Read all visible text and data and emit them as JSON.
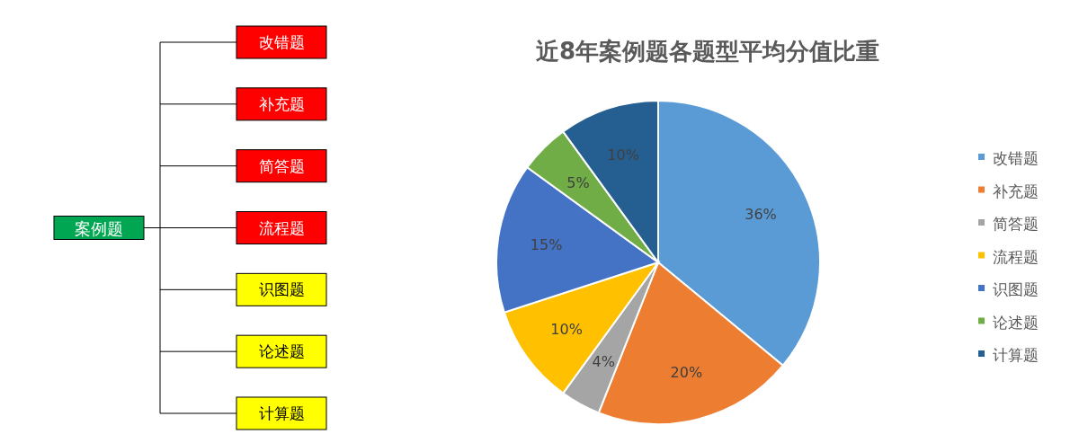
{
  "chart_data": [
    {
      "type": "other",
      "annotations": [
        "案例题",
        "改错题",
        "补充题",
        "简答题",
        "流程题",
        "识图题",
        "论述题",
        "计算题"
      ],
      "colors": [
        "#00a651",
        "#ff0000",
        "#ff0000",
        "#ff0000",
        "#ff0000",
        "#ffff00",
        "#ffff00",
        "#ffff00"
      ]
    },
    {
      "type": "pie",
      "title": "近8年案例题各题型平均分值比重",
      "categories": [
        "改错题",
        "补充题",
        "简答题",
        "流程题",
        "识图题",
        "论述题",
        "计算题"
      ],
      "values": [
        36,
        20,
        4,
        10,
        15,
        5,
        10
      ],
      "colors": [
        "#5b9bd5",
        "#ed7d31",
        "#a5a5a5",
        "#ffc000",
        "#4472c4",
        "#70ad47",
        "#255e91"
      ],
      "value_labels": [
        "36%",
        "20%",
        "4%",
        "10%",
        "15%",
        "5%",
        "10%"
      ],
      "legend": "right"
    }
  ]
}
